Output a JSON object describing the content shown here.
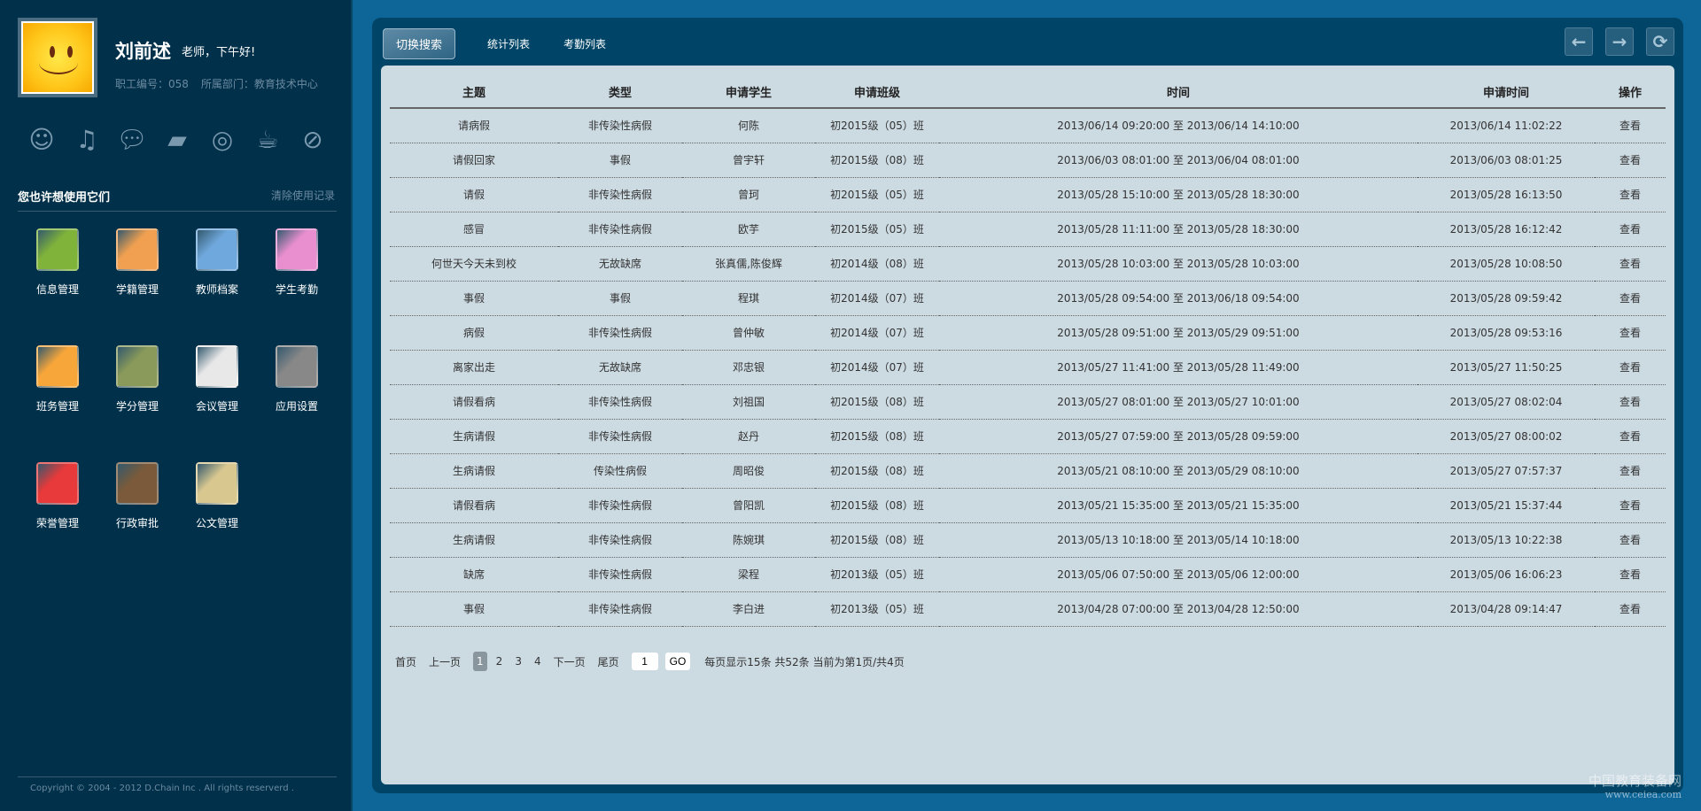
{
  "user": {
    "name": "刘前述",
    "greeting": "老师，下午好!",
    "staff_id": "职工编号：058",
    "department": "所属部门：教育技术中心"
  },
  "quick_icons": [
    "message-icon",
    "music-icon",
    "chat-icon",
    "folder-icon",
    "broadcast-icon",
    "coffee-icon",
    "block-icon"
  ],
  "apps_section": {
    "title": "您也许想使用它们",
    "clear_label": "清除使用记录"
  },
  "apps": [
    {
      "label": "信息管理",
      "color": "#7fb33a"
    },
    {
      "label": "学籍管理",
      "color": "#f0a050"
    },
    {
      "label": "教师档案",
      "color": "#6fa8dc"
    },
    {
      "label": "学生考勤",
      "color": "#e98fd0"
    },
    {
      "label": "班务管理",
      "color": "#f7a63a"
    },
    {
      "label": "学分管理",
      "color": "#8a9a5a"
    },
    {
      "label": "会议管理",
      "color": "#e8e8e8"
    },
    {
      "label": "应用设置",
      "color": "#888888"
    },
    {
      "label": "荣誉管理",
      "color": "#e83a3a"
    },
    {
      "label": "行政审批",
      "color": "#7a5a3a"
    },
    {
      "label": "公文管理",
      "color": "#d8c890"
    }
  ],
  "copyright": "Copyright © 2004 - 2012 D.Chain Inc . All rights reserverd .",
  "tabs": [
    "切换搜索",
    "统计列表",
    "考勤列表"
  ],
  "nav": {
    "back": "←",
    "forward": "→",
    "refresh": "⟳"
  },
  "table": {
    "headers": [
      "主题",
      "类型",
      "申请学生",
      "申请班级",
      "时间",
      "申请时间",
      "操作"
    ],
    "rows": [
      [
        "请病假",
        "非传染性病假",
        "何陈",
        "初2015级（05）班",
        "2013/06/14 09:20:00 至 2013/06/14 14:10:00",
        "2013/06/14 11:02:22",
        "查看"
      ],
      [
        "请假回家",
        "事假",
        "曾宇轩",
        "初2015级（08）班",
        "2013/06/03 08:01:00 至 2013/06/04 08:01:00",
        "2013/06/03 08:01:25",
        "查看"
      ],
      [
        "请假",
        "非传染性病假",
        "曾珂",
        "初2015级（05）班",
        "2013/05/28 15:10:00 至 2013/05/28 18:30:00",
        "2013/05/28 16:13:50",
        "查看"
      ],
      [
        "感冒",
        "非传染性病假",
        "欧芋",
        "初2015级（05）班",
        "2013/05/28 11:11:00 至 2013/05/28 18:30:00",
        "2013/05/28 16:12:42",
        "查看"
      ],
      [
        "何世天今天未到校",
        "无故缺席",
        "张真儒,陈俊辉",
        "初2014级（08）班",
        "2013/05/28 10:03:00 至 2013/05/28 10:03:00",
        "2013/05/28 10:08:50",
        "查看"
      ],
      [
        "事假",
        "事假",
        "程琪",
        "初2014级（07）班",
        "2013/05/28 09:54:00 至 2013/06/18 09:54:00",
        "2013/05/28 09:59:42",
        "查看"
      ],
      [
        "病假",
        "非传染性病假",
        "曾仲敏",
        "初2014级（07）班",
        "2013/05/28 09:51:00 至 2013/05/29 09:51:00",
        "2013/05/28 09:53:16",
        "查看"
      ],
      [
        "离家出走",
        "无故缺席",
        "邓忠银",
        "初2014级（07）班",
        "2013/05/27 11:41:00 至 2013/05/28 11:49:00",
        "2013/05/27 11:50:25",
        "查看"
      ],
      [
        "请假看病",
        "非传染性病假",
        "刘祖国",
        "初2015级（08）班",
        "2013/05/27 08:01:00 至 2013/05/27 10:01:00",
        "2013/05/27 08:02:04",
        "查看"
      ],
      [
        "生病请假",
        "非传染性病假",
        "赵丹",
        "初2015级（08）班",
        "2013/05/27 07:59:00 至 2013/05/28 09:59:00",
        "2013/05/27 08:00:02",
        "查看"
      ],
      [
        "生病请假",
        "传染性病假",
        "周昭俊",
        "初2015级（08）班",
        "2013/05/21 08:10:00 至 2013/05/29 08:10:00",
        "2013/05/27 07:57:37",
        "查看"
      ],
      [
        "请假看病",
        "非传染性病假",
        "曾阳凯",
        "初2015级（08）班",
        "2013/05/21 15:35:00 至 2013/05/21 15:35:00",
        "2013/05/21 15:37:44",
        "查看"
      ],
      [
        "生病请假",
        "非传染性病假",
        "陈婉琪",
        "初2015级（08）班",
        "2013/05/13 10:18:00 至 2013/05/14 10:18:00",
        "2013/05/13 10:22:38",
        "查看"
      ],
      [
        "缺席",
        "非传染性病假",
        "梁程",
        "初2013级（05）班",
        "2013/05/06 07:50:00 至 2013/05/06 12:00:00",
        "2013/05/06 16:06:23",
        "查看"
      ],
      [
        "事假",
        "非传染性病假",
        "李白进",
        "初2013级（05）班",
        "2013/04/28 07:00:00 至 2013/04/28 12:50:00",
        "2013/04/28 09:14:47",
        "查看"
      ]
    ]
  },
  "pager": {
    "first": "首页",
    "prev": "上一页",
    "pages": [
      "1",
      "2",
      "3",
      "4"
    ],
    "current": "1",
    "next": "下一页",
    "last": "尾页",
    "input_value": "1",
    "go": "GO",
    "summary": "每页显示15条 共52条 当前为第1页/共4页"
  },
  "watermark": {
    "line1": "中国教育装备网",
    "line2": "www.ceiea.com"
  }
}
